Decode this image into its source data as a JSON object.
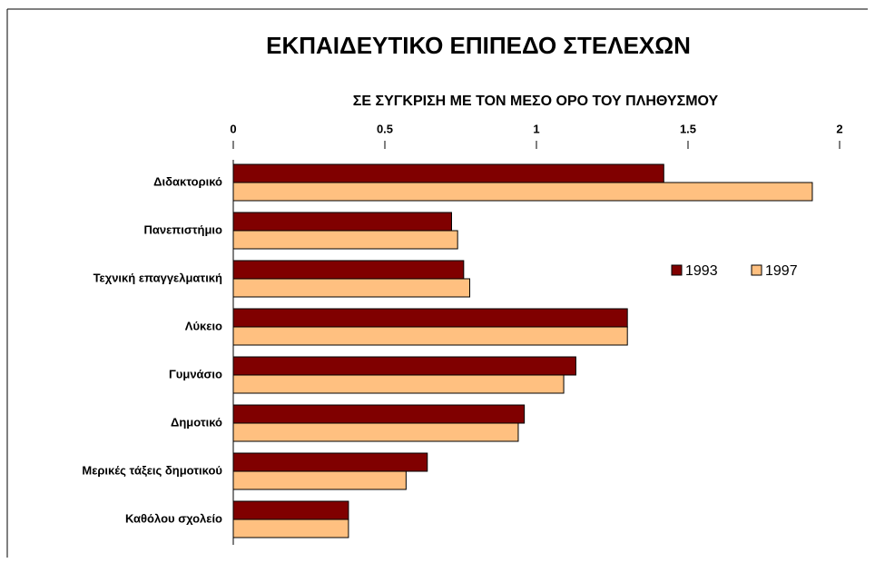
{
  "chart_data": {
    "type": "bar",
    "orientation": "horizontal",
    "title": "ΕΚΠΑΙΔΕΥΤΙΚΟ ΕΠΙΠΕΔΟ ΣΤΕΛΕΧΩΝ",
    "subtitle": "ΣΕ ΣΥΓΚΡΙΣΗ ΜΕ ΤΟΝ ΜΕΣΟ ΟΡΟ ΤΟΥ ΠΛΗΘΥΣΜΟΥ",
    "categories": [
      "Διδακτορικό",
      "Πανεπιστήμιο",
      "Τεχνική επαγγελματική",
      "Λύκειο",
      "Γυμνάσιο",
      "Δημοτικό",
      "Μερικές τάξεις δημοτικού",
      "Καθόλου σχολείο"
    ],
    "series": [
      {
        "name": "1993",
        "color": "#800000",
        "values": [
          1.42,
          0.72,
          0.76,
          1.3,
          1.13,
          0.96,
          0.64,
          0.38
        ]
      },
      {
        "name": "1997",
        "color": "#ffc080",
        "values": [
          1.91,
          0.74,
          0.78,
          1.3,
          1.09,
          0.94,
          0.57,
          0.38
        ]
      }
    ],
    "xlim": [
      0,
      2
    ],
    "xticks": [
      0,
      0.5,
      1,
      1.5,
      2
    ],
    "legend": "right"
  }
}
